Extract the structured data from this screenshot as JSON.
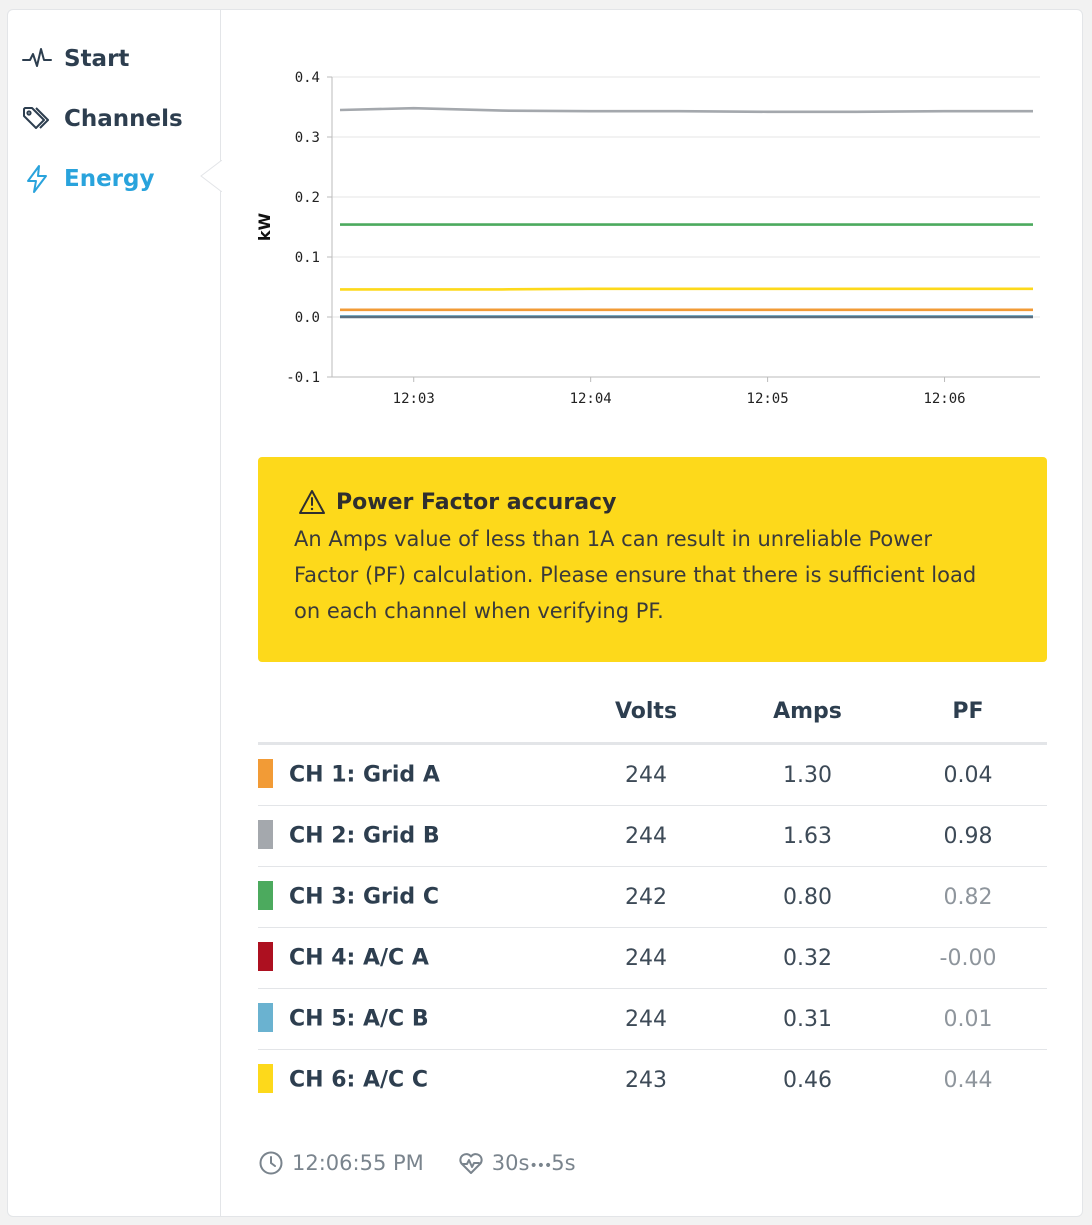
{
  "sidebar": {
    "items": [
      {
        "label": "Start",
        "icon": "pulse-icon",
        "active": false
      },
      {
        "label": "Channels",
        "icon": "tags-icon",
        "active": false
      },
      {
        "label": "Energy",
        "icon": "bolt-icon",
        "active": true
      }
    ]
  },
  "colors": {
    "accent": "#29a3dc",
    "warning_bg": "#fdd91b"
  },
  "chart_data": {
    "type": "line",
    "ylabel": "kW",
    "xlabel": "",
    "ylim": [
      -0.1,
      0.4
    ],
    "yticks": [
      "0.4",
      "0.3",
      "0.2",
      "0.1",
      "0.0",
      "-0.1"
    ],
    "xticks": [
      "12:03",
      "12:04",
      "12:05",
      "12:06"
    ],
    "grid": true,
    "x": [
      "12:02:35",
      "12:03",
      "12:03:30",
      "12:04",
      "12:04:30",
      "12:05",
      "12:05:30",
      "12:06",
      "12:06:30"
    ],
    "series": [
      {
        "color": "#a4a8ad",
        "values": [
          0.345,
          0.348,
          0.344,
          0.343,
          0.343,
          0.342,
          0.342,
          0.343,
          0.343
        ]
      },
      {
        "color": "#4caa5e",
        "values": [
          0.154,
          0.154,
          0.154,
          0.154,
          0.154,
          0.154,
          0.154,
          0.154,
          0.154
        ]
      },
      {
        "color": "#fdd91b",
        "values": [
          0.046,
          0.046,
          0.046,
          0.047,
          0.047,
          0.047,
          0.047,
          0.047,
          0.047
        ]
      },
      {
        "color": "#f29b36",
        "values": [
          0.012,
          0.012,
          0.012,
          0.012,
          0.012,
          0.012,
          0.012,
          0.012,
          0.012
        ]
      },
      {
        "color": "#6ab2d0",
        "values": [
          0.001,
          0.001,
          0.001,
          0.001,
          0.001,
          0.001,
          0.001,
          0.001,
          0.001
        ]
      },
      {
        "color": "#5a6f80",
        "values": [
          0.0,
          0.0,
          0.0,
          0.0,
          0.0,
          0.0,
          0.0,
          0.0,
          0.0
        ]
      }
    ]
  },
  "warning": {
    "icon": "warning-triangle-icon",
    "title": "Power Factor accuracy",
    "body": "An Amps value of less than 1A can result in unreliable Power Factor (PF) calculation. Please ensure that there is sufficient load on each channel when verifying PF."
  },
  "table": {
    "headers": {
      "name": "",
      "volts": "Volts",
      "amps": "Amps",
      "pf": "PF"
    },
    "rows": [
      {
        "name": "CH 1: Grid A",
        "color": "#f29b36",
        "volts": "244",
        "amps": "1.30",
        "pf": "0.04",
        "pf_muted": false
      },
      {
        "name": "CH 2: Grid B",
        "color": "#a4a8ad",
        "volts": "244",
        "amps": "1.63",
        "pf": "0.98",
        "pf_muted": false
      },
      {
        "name": "CH 3: Grid C",
        "color": "#4caa5e",
        "volts": "242",
        "amps": "0.80",
        "pf": "0.82",
        "pf_muted": true
      },
      {
        "name": "CH 4: A/C A",
        "color": "#ad1020",
        "volts": "244",
        "amps": "0.32",
        "pf": "-0.00",
        "pf_muted": true
      },
      {
        "name": "CH 5: A/C B",
        "color": "#6ab2d0",
        "volts": "244",
        "amps": "0.31",
        "pf": "0.01",
        "pf_muted": true
      },
      {
        "name": "CH 6: A/C C",
        "color": "#fdd91b",
        "volts": "243",
        "amps": "0.46",
        "pf": "0.44",
        "pf_muted": true
      }
    ]
  },
  "footer": {
    "time": "12:06:55 PM",
    "time_icon": "clock-icon",
    "interval_a": "30s",
    "interval_sep": "•••",
    "interval_b": "5s",
    "interval_icon": "heartbeat-icon"
  }
}
